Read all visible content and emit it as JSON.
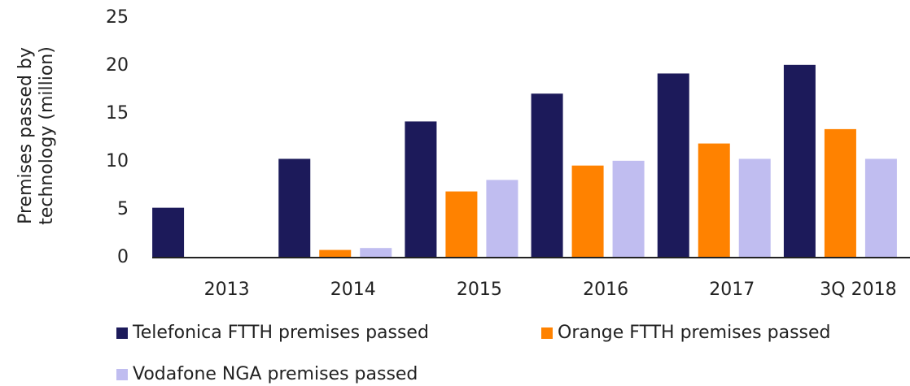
{
  "chart_data": {
    "type": "bar",
    "ylabel": [
      "Premises passed by",
      "technology (million)"
    ],
    "categories": [
      "2013",
      "2014",
      "2015",
      "2016",
      "2017",
      "3Q 2018"
    ],
    "series": [
      {
        "name": "Telefonica FTTH premises passed",
        "color": "#1c1a5a",
        "values": [
          5.2,
          10.3,
          14.2,
          17.1,
          19.2,
          20.1
        ]
      },
      {
        "name": "Orange FTTH premises passed",
        "color": "#ff8200",
        "values": [
          0,
          0.8,
          6.9,
          9.6,
          11.9,
          13.4
        ]
      },
      {
        "name": "Vodafone NGA premises passed",
        "color": "#c0bdf0",
        "values": [
          0,
          1.0,
          8.1,
          10.1,
          10.3,
          10.3
        ]
      }
    ],
    "ylim": [
      0,
      25
    ],
    "yticks": [
      0,
      5,
      10,
      15,
      20,
      25
    ],
    "grid": false
  }
}
